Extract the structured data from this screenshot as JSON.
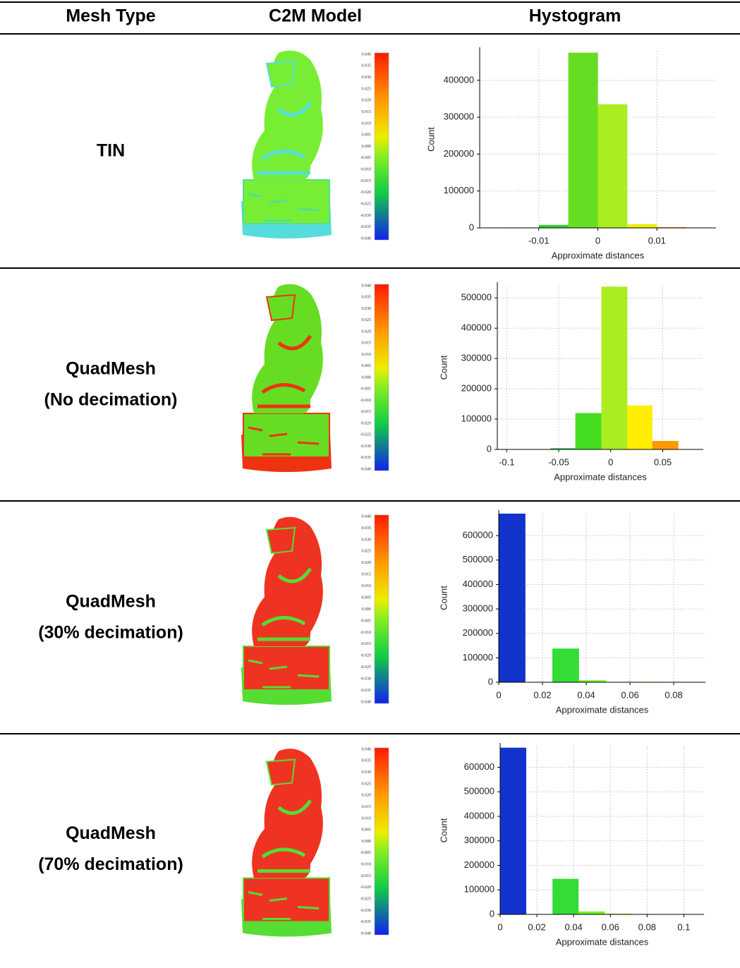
{
  "header": [
    "Mesh Type",
    "C2M Model",
    "Hystogram"
  ],
  "scale_labels": [
    "0.040",
    "0.035",
    "0.030",
    "0.025",
    "0.020",
    "0.015",
    "0.010",
    "0.005",
    "0.000",
    "-0.005",
    "-0.010",
    "-0.015",
    "-0.020",
    "-0.025",
    "-0.030",
    "-0.035",
    "-0.040"
  ],
  "rows": [
    {
      "mesh_type": [
        "TIN"
      ],
      "histogram": {
        "type": "histogram",
        "x_label": "Approximate distances",
        "y_label": "Count",
        "bins": [
          -0.015,
          -0.01,
          -0.005,
          0,
          0.005,
          0.01,
          0.015,
          0.02
        ],
        "counts": [
          1000,
          8000,
          475000,
          335000,
          10000,
          2000,
          500
        ],
        "colors": [
          "#33cc33",
          "#33cc33",
          "#66dd22",
          "#aaee22",
          "#eeee00",
          "#ff9900",
          "#ff4400"
        ],
        "xlim": [
          -0.02,
          0.02
        ],
        "ylim": [
          0,
          480000
        ],
        "xticks": [
          -0.01,
          0,
          0.01
        ],
        "yticks": [
          0,
          100000,
          200000,
          300000,
          400000
        ],
        "grid": true
      }
    },
    {
      "mesh_type": [
        "QuadMesh",
        "(No decimation)"
      ],
      "histogram": {
        "type": "histogram",
        "x_label": "Approximate distances",
        "y_label": "Count",
        "bins": [
          -0.058,
          -0.034,
          -0.009,
          0.016,
          0.04,
          0.065
        ],
        "counts": [
          4000,
          120000,
          537000,
          145000,
          28000
        ],
        "colors": [
          "#22bb44",
          "#44dd22",
          "#aaee22",
          "#ffee00",
          "#ff9900"
        ],
        "xlim": [
          -0.109,
          0.089
        ],
        "ylim": [
          0,
          540000
        ],
        "xticks": [
          -0.1,
          -0.05,
          0,
          0.05
        ],
        "yticks": [
          0,
          100000,
          200000,
          300000,
          400000,
          500000
        ],
        "grid": true
      }
    },
    {
      "mesh_type": [
        "QuadMesh",
        "(30% decimation)"
      ],
      "histogram": {
        "type": "histogram",
        "x_label": "Approximate distances",
        "y_label": "Count",
        "bins": [
          0,
          0.0122,
          0.0245,
          0.0367,
          0.049,
          0.0612,
          0.0734
        ],
        "counts": [
          690000,
          0,
          138000,
          8000,
          1000,
          2000
        ],
        "colors": [
          "#1133cc",
          "#22aaaa",
          "#33dd33",
          "#77ee22",
          "#bbee22",
          "#eeee00"
        ],
        "xlim": [
          0,
          0.0945
        ],
        "ylim": [
          0,
          690000
        ],
        "xticks": [
          0,
          0.02,
          0.04,
          0.06,
          0.08
        ],
        "yticks": [
          0,
          100000,
          200000,
          300000,
          400000,
          500000,
          600000
        ],
        "grid": true
      }
    },
    {
      "mesh_type": [
        "QuadMesh",
        "(70% decimation)"
      ],
      "histogram": {
        "type": "histogram",
        "x_label": "Approximate distances",
        "y_label": "Count",
        "bins": [
          0,
          0.0142,
          0.0285,
          0.0427,
          0.057,
          0.0712
        ],
        "counts": [
          680000,
          0,
          145000,
          12000,
          3000
        ],
        "colors": [
          "#1133cc",
          "#22aaaa",
          "#33dd33",
          "#77ee22",
          "#ccee22"
        ],
        "xlim": [
          0,
          0.111
        ],
        "ylim": [
          0,
          685000
        ],
        "xticks": [
          0,
          0.02,
          0.04,
          0.06,
          0.08,
          0.1
        ],
        "yticks": [
          0,
          100000,
          200000,
          300000,
          400000,
          500000,
          600000
        ],
        "grid": true
      }
    }
  ]
}
